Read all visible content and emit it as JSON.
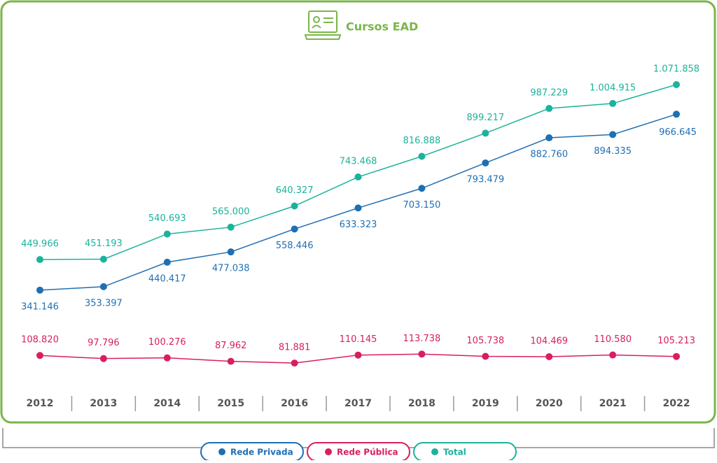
{
  "chart_data": {
    "type": "line",
    "title": "Cursos EAD",
    "categories": [
      "2012",
      "2013",
      "2014",
      "2015",
      "2016",
      "2017",
      "2018",
      "2019",
      "2020",
      "2021",
      "2022"
    ],
    "series": [
      {
        "name": "Rede Privada",
        "color": "#1f6fb4",
        "label_position": "below",
        "values": [
          341146,
          353397,
          440417,
          477038,
          558446,
          633323,
          703150,
          793479,
          882760,
          894335,
          966645
        ],
        "value_labels": [
          "341.146",
          "353.397",
          "440.417",
          "477.038",
          "558.446",
          "633.323",
          "703.150",
          "793.479",
          "882.760",
          "894.335",
          "966.645"
        ]
      },
      {
        "name": "Rede Pública",
        "color": "#d81e62",
        "label_position": "above",
        "values": [
          108820,
          97796,
          100276,
          87962,
          81881,
          110145,
          113738,
          105738,
          104469,
          110580,
          105213
        ],
        "value_labels": [
          "108.820",
          "97.796",
          "100.276",
          "87.962",
          "81.881",
          "110.145",
          "113.738",
          "105.738",
          "104.469",
          "110.580",
          "105.213"
        ]
      },
      {
        "name": "Total",
        "color": "#1bb39c",
        "label_position": "above",
        "values": [
          449966,
          451193,
          540693,
          565000,
          640327,
          743468,
          816888,
          899217,
          987229,
          1004915,
          1071858
        ],
        "value_labels": [
          "449.966",
          "451.193",
          "540.693",
          "565.000",
          "640.327",
          "743.468",
          "816.888",
          "899.217",
          "987.229",
          "1.004.915",
          "1.071.858"
        ]
      }
    ]
  }
}
